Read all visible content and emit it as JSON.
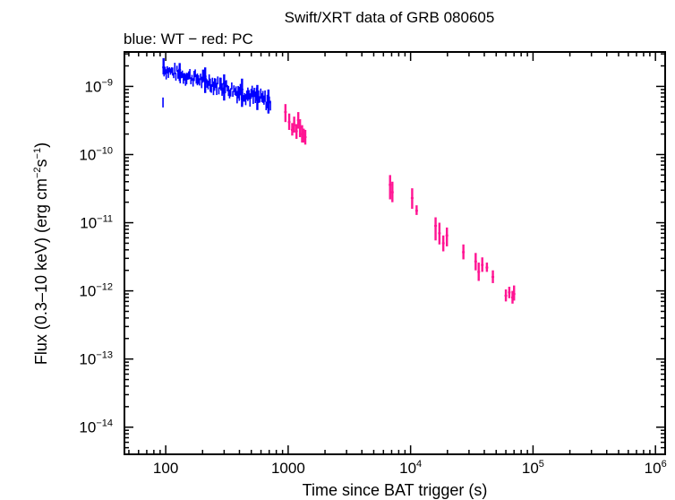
{
  "chart_data": {
    "type": "scatter",
    "title": "Swift/XRT data of GRB 080605",
    "subtitle": "blue: WT − red: PC",
    "xlabel": "Time since BAT trigger (s)",
    "ylabel": {
      "prefix": "Flux (0.3–10 keV) (erg cm",
      "exp1": "−2",
      "mid": "s",
      "exp2": "−1",
      "suffix": ")"
    },
    "x_scale": "log",
    "y_scale": "log",
    "xlim": [
      46,
      1200000
    ],
    "ylim": [
      4e-15,
      3.2e-09
    ],
    "x_ticks": [
      {
        "value": 100,
        "base": "100",
        "exp": ""
      },
      {
        "value": 1000,
        "base": "1000",
        "exp": ""
      },
      {
        "value": 10000,
        "base": "10",
        "exp": "4"
      },
      {
        "value": 100000,
        "base": "10",
        "exp": "5"
      },
      {
        "value": 1000000,
        "base": "10",
        "exp": "6"
      }
    ],
    "y_ticks": [
      {
        "value": 1e-09,
        "base": "10",
        "exp": "−9"
      },
      {
        "value": 1e-10,
        "base": "10",
        "exp": "−10"
      },
      {
        "value": 1e-11,
        "base": "10",
        "exp": "−11"
      },
      {
        "value": 1e-12,
        "base": "10",
        "exp": "−12"
      },
      {
        "value": 1e-13,
        "base": "10",
        "exp": "−13"
      },
      {
        "value": 1e-14,
        "base": "10",
        "exp": "−14"
      }
    ],
    "grid": false,
    "legend": "none",
    "series": [
      {
        "name": "WT",
        "color": "#0000ff",
        "style": "error-bars",
        "band": {
          "t_range": [
            95,
            720
          ],
          "flux_upper": [
            [
              95,
              2.4e-09
            ],
            [
              200,
              1.8e-09
            ],
            [
              400,
              1.25e-09
            ],
            [
              720,
              8.5e-10
            ]
          ],
          "flux_lower": [
            [
              95,
              1.3e-09
            ],
            [
              200,
              8.5e-10
            ],
            [
              400,
              5.5e-10
            ],
            [
              720,
              4e-10
            ]
          ]
        },
        "points": [
          {
            "t": 96,
            "f": 1.9e-09,
            "lo": 1.5e-09,
            "hi": 2.6e-09
          },
          {
            "t": 130,
            "f": 1.75e-09,
            "lo": 1.2e-09,
            "hi": 2.2e-09
          },
          {
            "t": 210,
            "f": 1.4e-09,
            "lo": 8e-10,
            "hi": 1.9e-09
          },
          {
            "t": 300,
            "f": 1.1e-09,
            "lo": 6.2e-10,
            "hi": 1.5e-09
          },
          {
            "t": 420,
            "f": 9e-10,
            "lo": 5e-10,
            "hi": 1.3e-09
          },
          {
            "t": 560,
            "f": 7.8e-10,
            "lo": 4.5e-10,
            "hi": 1.05e-09
          },
          {
            "t": 690,
            "f": 6e-10,
            "lo": 4e-10,
            "hi": 9e-10
          }
        ]
      },
      {
        "name": "PC",
        "color": "#ff1493",
        "style": "error-bars",
        "points": [
          {
            "t": 950,
            "f": 4.2e-10,
            "lo": 3e-10,
            "hi": 5.5e-10
          },
          {
            "t": 1020,
            "f": 3e-10,
            "lo": 2.3e-10,
            "hi": 4e-10
          },
          {
            "t": 1080,
            "f": 2.3e-10,
            "lo": 1.9e-10,
            "hi": 2.9e-10
          },
          {
            "t": 1120,
            "f": 2.7e-10,
            "lo": 2.1e-10,
            "hi": 3.6e-10
          },
          {
            "t": 1170,
            "f": 2.2e-10,
            "lo": 1.7e-10,
            "hi": 2.8e-10
          },
          {
            "t": 1210,
            "f": 3.2e-10,
            "lo": 2.4e-10,
            "hi": 4.2e-10
          },
          {
            "t": 1250,
            "f": 2.5e-10,
            "lo": 1.8e-10,
            "hi": 3.3e-10
          },
          {
            "t": 1300,
            "f": 2e-10,
            "lo": 1.5e-10,
            "hi": 2.7e-10
          },
          {
            "t": 1340,
            "f": 1.9e-10,
            "lo": 1.5e-10,
            "hi": 2.4e-10
          },
          {
            "t": 1380,
            "f": 1.8e-10,
            "lo": 1.4e-10,
            "hi": 2.3e-10
          },
          {
            "t": 6800,
            "f": 3.6e-11,
            "lo": 2.2e-11,
            "hi": 5e-11
          },
          {
            "t": 7100,
            "f": 2.8e-11,
            "lo": 2e-11,
            "hi": 4e-11
          },
          {
            "t": 10300,
            "f": 2.3e-11,
            "lo": 1.6e-11,
            "hi": 3.2e-11
          },
          {
            "t": 11200,
            "f": 1.5e-11,
            "lo": 1.3e-11,
            "hi": 1.8e-11
          },
          {
            "t": 16000,
            "f": 9e-12,
            "lo": 5.5e-12,
            "hi": 1.2e-11
          },
          {
            "t": 17200,
            "f": 7e-12,
            "lo": 4.8e-12,
            "hi": 1e-11
          },
          {
            "t": 18500,
            "f": 5e-12,
            "lo": 3.8e-12,
            "hi": 6.5e-12
          },
          {
            "t": 19800,
            "f": 6.5e-12,
            "lo": 4.5e-12,
            "hi": 8.5e-12
          },
          {
            "t": 27000,
            "f": 3.7e-12,
            "lo": 2.9e-12,
            "hi": 4.8e-12
          },
          {
            "t": 34000,
            "f": 2.7e-12,
            "lo": 2e-12,
            "hi": 3.6e-12
          },
          {
            "t": 36000,
            "f": 1.9e-12,
            "lo": 1.4e-12,
            "hi": 2.6e-12
          },
          {
            "t": 38500,
            "f": 2.4e-12,
            "lo": 1.9e-12,
            "hi": 3.1e-12
          },
          {
            "t": 42000,
            "f": 2.2e-12,
            "lo": 1.9e-12,
            "hi": 2.6e-12
          },
          {
            "t": 47000,
            "f": 1.6e-12,
            "lo": 1.3e-12,
            "hi": 2e-12
          },
          {
            "t": 60000,
            "f": 8.5e-13,
            "lo": 7e-13,
            "hi": 1.05e-12
          },
          {
            "t": 64000,
            "f": 9.5e-13,
            "lo": 7.8e-13,
            "hi": 1.15e-12
          },
          {
            "t": 68000,
            "f": 8e-13,
            "lo": 6.5e-13,
            "hi": 1e-12
          },
          {
            "t": 70000,
            "f": 9e-13,
            "lo": 7.2e-13,
            "hi": 1.2e-12
          }
        ]
      }
    ]
  }
}
